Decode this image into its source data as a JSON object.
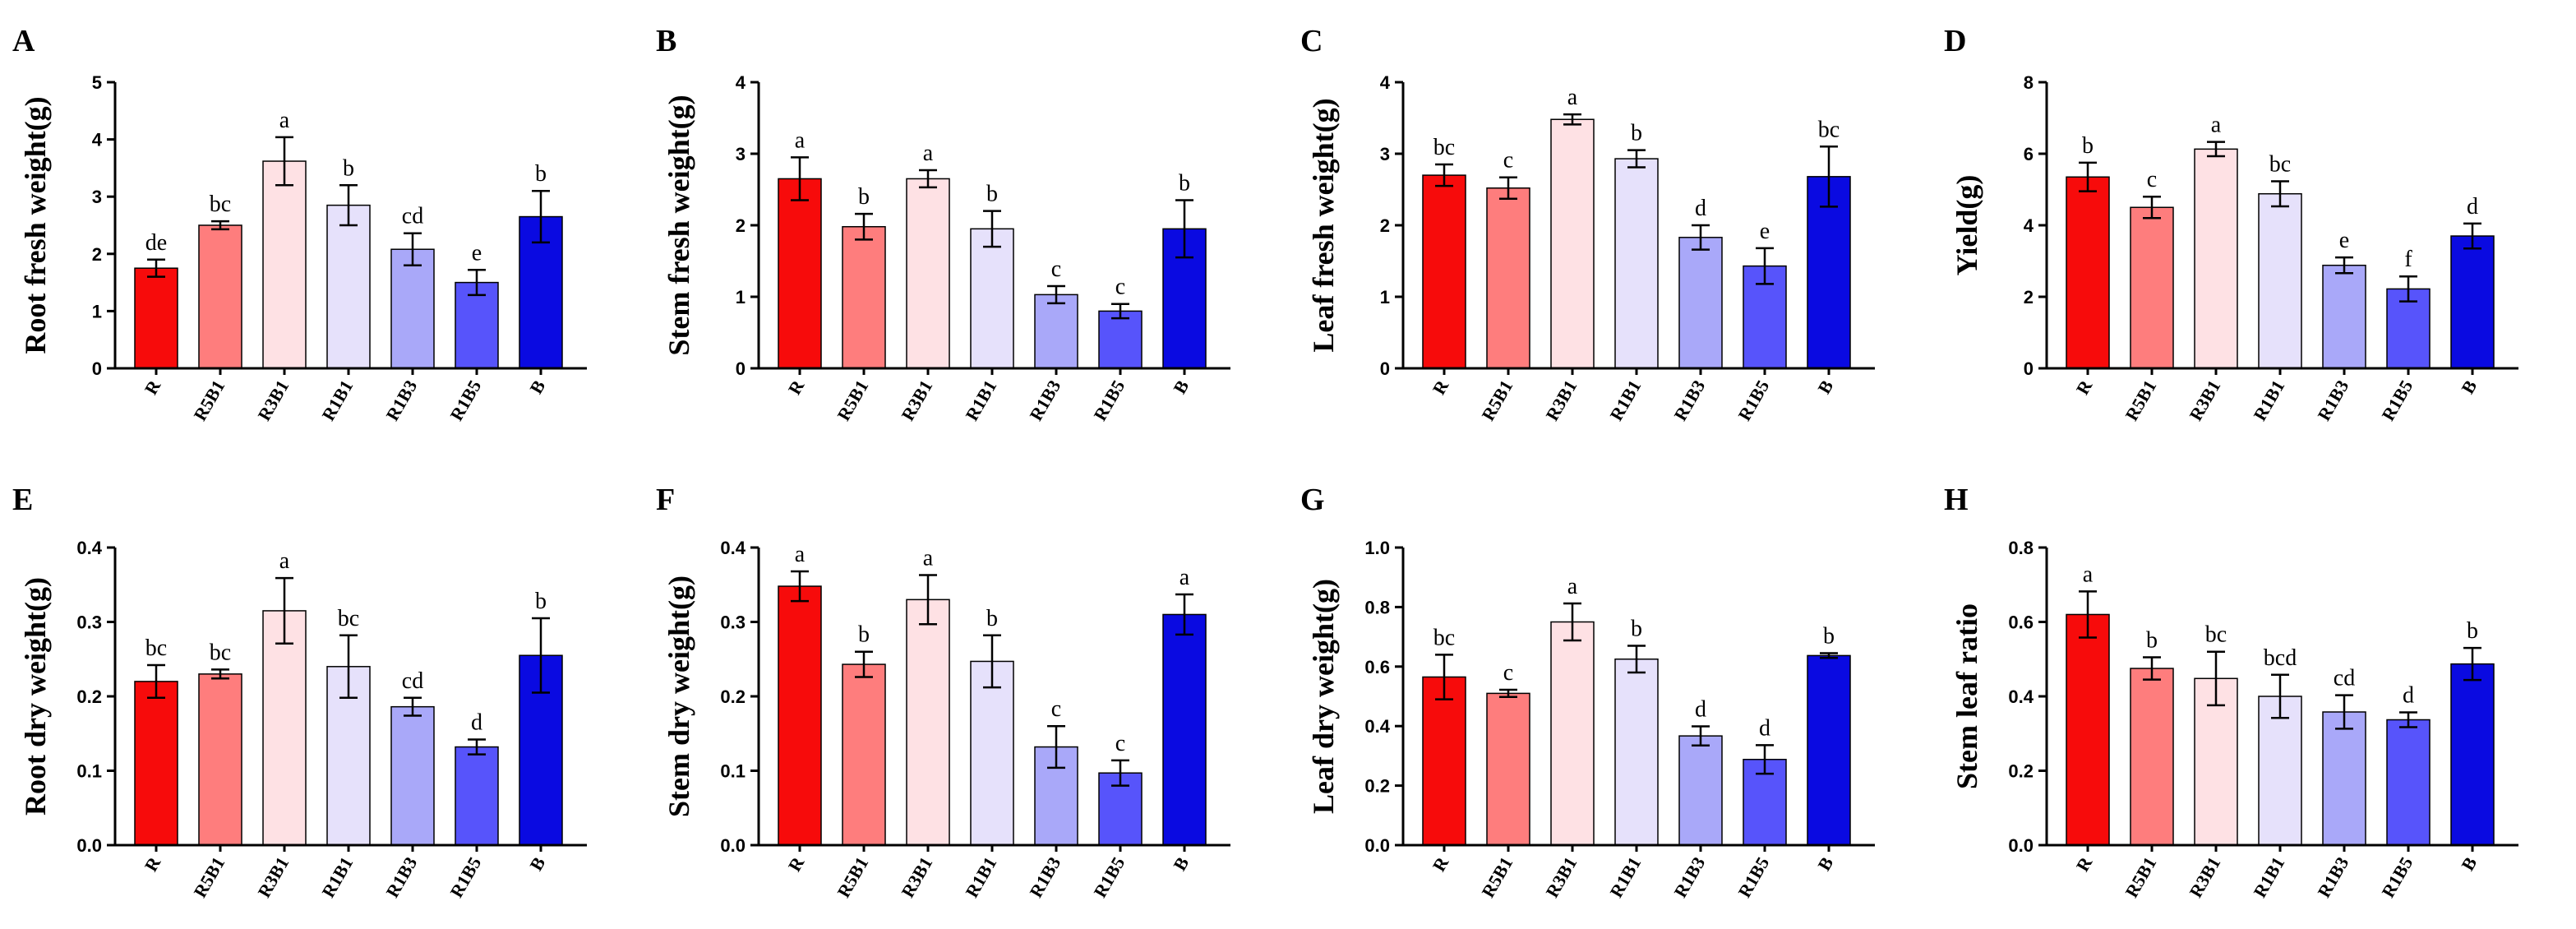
{
  "colors": [
    "#f70b0b",
    "#fe7d7d",
    "#fee1e4",
    "#e6e1fb",
    "#a9a8f9",
    "#5754fb",
    "#0a0ae1"
  ],
  "chart_data": [
    {
      "panel": "A",
      "type": "bar",
      "ylabel": "Root fresh weight(g)",
      "categories": [
        "R",
        "R5B1",
        "R3B1",
        "R1B1",
        "R1B3",
        "R1B5",
        "B"
      ],
      "ylim": [
        0,
        5
      ],
      "yticks": [
        "0",
        "1",
        "2",
        "3",
        "4",
        "5"
      ],
      "values": [
        1.75,
        2.5,
        3.62,
        2.85,
        2.08,
        1.5,
        2.65
      ],
      "errors": [
        0.15,
        0.07,
        0.42,
        0.35,
        0.28,
        0.22,
        0.45
      ],
      "letters": [
        "de",
        "bc",
        "a",
        "b",
        "cd",
        "e",
        "b"
      ]
    },
    {
      "panel": "B",
      "type": "bar",
      "ylabel": "Stem fresh weight(g)",
      "categories": [
        "R",
        "R5B1",
        "R3B1",
        "R1B1",
        "R1B3",
        "R1B5",
        "B"
      ],
      "ylim": [
        0,
        4
      ],
      "yticks": [
        "0",
        "1",
        "2",
        "3",
        "4"
      ],
      "values": [
        2.65,
        1.98,
        2.65,
        1.95,
        1.03,
        0.8,
        1.95
      ],
      "errors": [
        0.3,
        0.18,
        0.12,
        0.25,
        0.12,
        0.1,
        0.4
      ],
      "letters": [
        "a",
        "b",
        "a",
        "b",
        "c",
        "c",
        "b"
      ]
    },
    {
      "panel": "C",
      "type": "bar",
      "ylabel": "Leaf fresh weight(g)",
      "categories": [
        "R",
        "R5B1",
        "R3B1",
        "R1B1",
        "R1B3",
        "R1B5",
        "B"
      ],
      "ylim": [
        0,
        4
      ],
      "yticks": [
        "0",
        "1",
        "2",
        "3",
        "4"
      ],
      "values": [
        2.7,
        2.52,
        3.48,
        2.93,
        1.83,
        1.43,
        2.68
      ],
      "errors": [
        0.15,
        0.15,
        0.07,
        0.12,
        0.17,
        0.25,
        0.42
      ],
      "letters": [
        "bc",
        "c",
        "a",
        "b",
        "d",
        "e",
        "bc"
      ]
    },
    {
      "panel": "D",
      "type": "bar",
      "ylabel": "Yield(g)",
      "categories": [
        "R",
        "R5B1",
        "R3B1",
        "R1B1",
        "R1B3",
        "R1B5",
        "B"
      ],
      "ylim": [
        0,
        8
      ],
      "yticks": [
        "0",
        "2",
        "4",
        "6",
        "8"
      ],
      "values": [
        5.35,
        4.5,
        6.13,
        4.88,
        2.88,
        2.22,
        3.7
      ],
      "errors": [
        0.4,
        0.3,
        0.2,
        0.35,
        0.22,
        0.35,
        0.35
      ],
      "letters": [
        "b",
        "c",
        "a",
        "bc",
        "e",
        "f",
        "d"
      ]
    },
    {
      "panel": "E",
      "type": "bar",
      "ylabel": "Root dry weight(g)",
      "categories": [
        "R",
        "R5B1",
        "R3B1",
        "R1B1",
        "R1B3",
        "R1B5",
        "B"
      ],
      "ylim": [
        0,
        0.4
      ],
      "yticks": [
        "0.0",
        "0.1",
        "0.2",
        "0.3",
        "0.4"
      ],
      "values": [
        0.22,
        0.23,
        0.315,
        0.24,
        0.186,
        0.132,
        0.255
      ],
      "errors": [
        0.022,
        0.006,
        0.044,
        0.042,
        0.012,
        0.01,
        0.05
      ],
      "letters": [
        "bc",
        "bc",
        "a",
        "bc",
        "cd",
        "d",
        "b"
      ]
    },
    {
      "panel": "F",
      "type": "bar",
      "ylabel": "Stem dry weight(g)",
      "categories": [
        "R",
        "R5B1",
        "R3B1",
        "R1B1",
        "R1B3",
        "R1B5",
        "B"
      ],
      "ylim": [
        0,
        0.4
      ],
      "yticks": [
        "0.0",
        "0.1",
        "0.2",
        "0.3",
        "0.4"
      ],
      "values": [
        0.348,
        0.243,
        0.33,
        0.247,
        0.132,
        0.097,
        0.31
      ],
      "errors": [
        0.02,
        0.017,
        0.033,
        0.035,
        0.028,
        0.017,
        0.027
      ],
      "letters": [
        "a",
        "b",
        "a",
        "b",
        "c",
        "c",
        "a"
      ]
    },
    {
      "panel": "G",
      "type": "bar",
      "ylabel": "Leaf dry weight(g)",
      "categories": [
        "R",
        "R5B1",
        "R3B1",
        "R1B1",
        "R1B3",
        "R1B5",
        "B"
      ],
      "ylim": [
        0,
        1.0
      ],
      "yticks": [
        "0.0",
        "0.2",
        "0.4",
        "0.6",
        "0.8",
        "1.0"
      ],
      "values": [
        0.565,
        0.51,
        0.75,
        0.625,
        0.367,
        0.288,
        0.637
      ],
      "errors": [
        0.075,
        0.012,
        0.062,
        0.045,
        0.032,
        0.048,
        0.008
      ],
      "letters": [
        "bc",
        "c",
        "a",
        "b",
        "d",
        "d",
        "b"
      ]
    },
    {
      "panel": "H",
      "type": "bar",
      "ylabel": "Stem leaf ratio",
      "categories": [
        "R",
        "R5B1",
        "R3B1",
        "R1B1",
        "R1B3",
        "R1B5",
        "B"
      ],
      "ylim": [
        0,
        0.8
      ],
      "yticks": [
        "0.0",
        "0.2",
        "0.4",
        "0.6",
        "0.8"
      ],
      "values": [
        0.62,
        0.475,
        0.448,
        0.4,
        0.358,
        0.337,
        0.487
      ],
      "errors": [
        0.062,
        0.03,
        0.072,
        0.058,
        0.045,
        0.02,
        0.043
      ],
      "letters": [
        "a",
        "b",
        "bc",
        "bcd",
        "cd",
        "d",
        "b"
      ]
    }
  ]
}
